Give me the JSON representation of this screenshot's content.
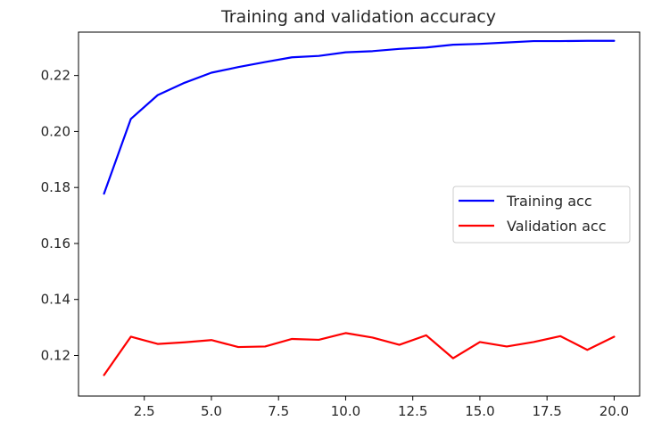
{
  "chart_data": {
    "type": "line",
    "title": "Training and validation accuracy",
    "xlabel": "",
    "ylabel": "",
    "xlim": [
      0.05,
      20.95
    ],
    "ylim": [
      0.1055,
      0.2355
    ],
    "xticks": [
      2.5,
      5.0,
      7.5,
      10.0,
      12.5,
      15.0,
      17.5,
      20.0
    ],
    "xtick_labels": [
      "2.5",
      "5.0",
      "7.5",
      "10.0",
      "12.5",
      "15.0",
      "17.5",
      "20.0"
    ],
    "yticks": [
      0.12,
      0.14,
      0.16,
      0.18,
      0.2,
      0.22
    ],
    "ytick_labels": [
      "0.12",
      "0.14",
      "0.16",
      "0.18",
      "0.20",
      "0.22"
    ],
    "grid": false,
    "legend_position": "center-right",
    "x": [
      1,
      2,
      3,
      4,
      5,
      6,
      7,
      8,
      9,
      10,
      11,
      12,
      13,
      14,
      15,
      16,
      17,
      18,
      19,
      20
    ],
    "series": [
      {
        "name": "Training acc",
        "color": "#0000ff",
        "values": [
          0.1778,
          0.2045,
          0.213,
          0.2174,
          0.221,
          0.223,
          0.2248,
          0.2265,
          0.227,
          0.2283,
          0.2287,
          0.2295,
          0.23,
          0.231,
          0.2313,
          0.2318,
          0.2323,
          0.2323,
          0.2324,
          0.2324
        ]
      },
      {
        "name": "Validation acc",
        "color": "#ff0000",
        "values": [
          0.113,
          0.1267,
          0.1241,
          0.1247,
          0.1255,
          0.123,
          0.1232,
          0.1259,
          0.1256,
          0.128,
          0.1264,
          0.1238,
          0.1272,
          0.119,
          0.1248,
          0.1232,
          0.1248,
          0.1269,
          0.122,
          0.1267
        ]
      }
    ]
  }
}
